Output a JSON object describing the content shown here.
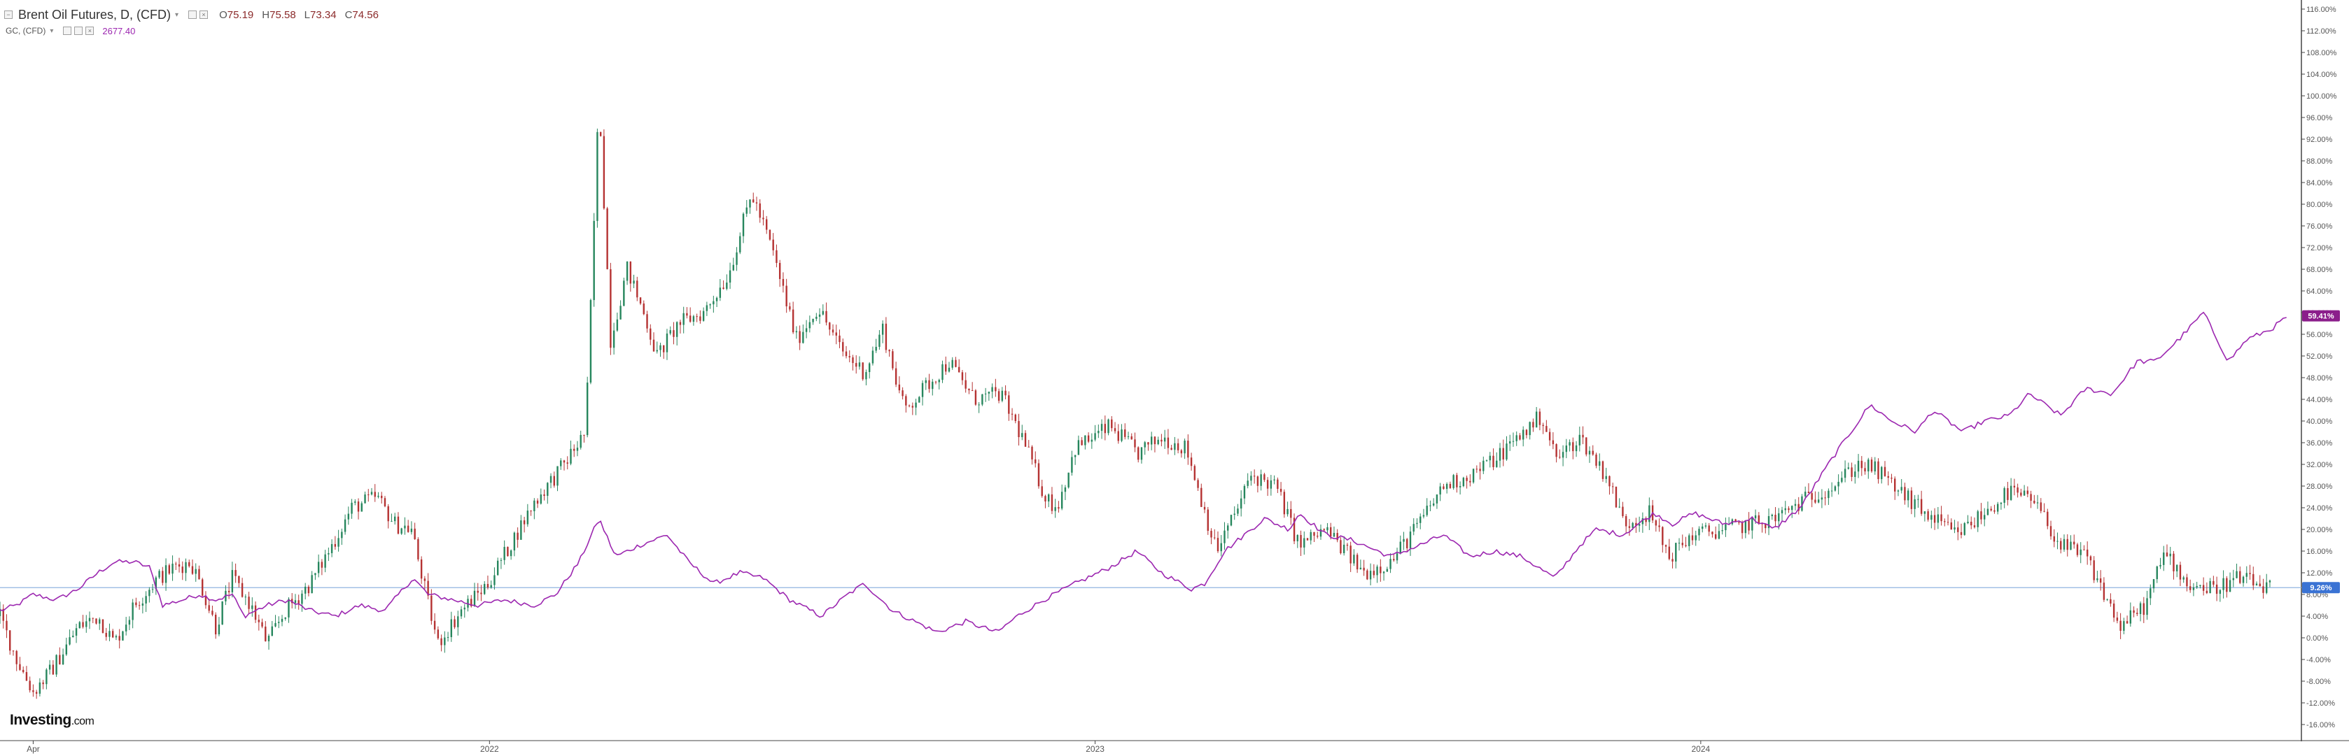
{
  "legend": {
    "main_symbol": "Brent Oil Futures, D, (CFD)",
    "open_label": "O",
    "open_value": "75.19",
    "high_label": "H",
    "high_value": "75.58",
    "low_label": "L",
    "low_value": "73.34",
    "close_label": "C",
    "close_value": "74.56",
    "secondary_symbol": "GC, (CFD)",
    "secondary_value": "2677.40"
  },
  "branding": {
    "name": "Investing",
    "suffix": ".com"
  },
  "colors": {
    "up_candle": "#26865d",
    "down_candle": "#b53232",
    "gold_line": "#9c27b0",
    "baseline": "#90b4e0",
    "axis_text": "#555555",
    "gold_badge": "#8b1e8b",
    "oil_badge": "#3a73d4"
  },
  "chart_data": {
    "type": "line",
    "axis_unit": "percent change",
    "ylim": [
      -17,
      117
    ],
    "y_ticks": [
      "116.00%",
      "112.00%",
      "108.00%",
      "104.00%",
      "100.00%",
      "96.00%",
      "92.00%",
      "88.00%",
      "84.00%",
      "80.00%",
      "76.00%",
      "72.00%",
      "68.00%",
      "64.00%",
      "60.00%",
      "56.00%",
      "52.00%",
      "48.00%",
      "44.00%",
      "40.00%",
      "36.00%",
      "32.00%",
      "28.00%",
      "24.00%",
      "20.00%",
      "16.00%",
      "12.00%",
      "8.00%",
      "4.00%",
      "0.00%",
      "-4.00%",
      "-8.00%",
      "-12.00%",
      "-16.00%"
    ],
    "y_tick_values": [
      116,
      112,
      108,
      104,
      100,
      96,
      92,
      88,
      84,
      80,
      76,
      72,
      68,
      64,
      60,
      56,
      52,
      48,
      44,
      40,
      36,
      32,
      28,
      24,
      20,
      16,
      12,
      8,
      4,
      0,
      -4,
      -8,
      -12,
      -16
    ],
    "x_tick_labels": [
      "Apr",
      "2022",
      "2023",
      "2024"
    ],
    "x_tick_dates": [
      "2021-04-01",
      "2022-01-01",
      "2023-01-01",
      "2024-01-01"
    ],
    "x_range": [
      "2021-03-12",
      "2024-12-28"
    ],
    "baseline_value": 9.26,
    "last_value_badges": [
      {
        "series": "GC, (CFD)",
        "label": "59.41%",
        "value": 59.41
      },
      {
        "series": "Brent Oil Futures, D, (CFD)",
        "label": "9.26%",
        "value": 9.26
      }
    ],
    "series": [
      {
        "name": "Brent Oil Futures, D, (CFD)",
        "style": "candlestick",
        "points": [
          [
            "2021-03-12",
            4
          ],
          [
            "2021-03-22",
            -4
          ],
          [
            "2021-04-01",
            -10
          ],
          [
            "2021-04-12",
            -6
          ],
          [
            "2021-04-28",
            2
          ],
          [
            "2021-05-10",
            4
          ],
          [
            "2021-05-20",
            -1
          ],
          [
            "2021-06-01",
            6
          ],
          [
            "2021-06-15",
            11
          ],
          [
            "2021-06-25",
            13
          ],
          [
            "2021-07-05",
            14
          ],
          [
            "2021-07-12",
            9
          ],
          [
            "2021-07-20",
            2
          ],
          [
            "2021-07-30",
            11
          ],
          [
            "2021-08-10",
            6
          ],
          [
            "2021-08-20",
            -1
          ],
          [
            "2021-08-31",
            5
          ],
          [
            "2021-09-15",
            10
          ],
          [
            "2021-09-28",
            17
          ],
          [
            "2021-10-10",
            24
          ],
          [
            "2021-10-25",
            26
          ],
          [
            "2021-11-05",
            21
          ],
          [
            "2021-11-15",
            20
          ],
          [
            "2021-11-26",
            5
          ],
          [
            "2021-12-01",
            -1
          ],
          [
            "2021-12-15",
            5
          ],
          [
            "2021-12-31",
            10
          ],
          [
            "2022-01-15",
            18
          ],
          [
            "2022-01-28",
            25
          ],
          [
            "2022-02-15",
            32
          ],
          [
            "2022-02-28",
            38
          ],
          [
            "2022-03-08",
            100
          ],
          [
            "2022-03-15",
            55
          ],
          [
            "2022-03-25",
            68
          ],
          [
            "2022-04-05",
            59
          ],
          [
            "2022-04-12",
            52
          ],
          [
            "2022-04-25",
            58
          ],
          [
            "2022-05-10",
            60
          ],
          [
            "2022-05-25",
            67
          ],
          [
            "2022-06-08",
            82
          ],
          [
            "2022-06-20",
            72
          ],
          [
            "2022-07-05",
            55
          ],
          [
            "2022-07-18",
            61
          ],
          [
            "2022-08-01",
            53
          ],
          [
            "2022-08-15",
            49
          ],
          [
            "2022-08-26",
            57
          ],
          [
            "2022-09-08",
            42
          ],
          [
            "2022-09-20",
            46
          ],
          [
            "2022-10-05",
            51
          ],
          [
            "2022-10-20",
            44
          ],
          [
            "2022-11-05",
            45
          ],
          [
            "2022-11-18",
            37
          ],
          [
            "2022-12-02",
            26
          ],
          [
            "2022-12-09",
            24
          ],
          [
            "2022-12-20",
            35
          ],
          [
            "2023-01-10",
            39
          ],
          [
            "2023-01-27",
            34
          ],
          [
            "2023-02-10",
            37
          ],
          [
            "2023-02-25",
            35
          ],
          [
            "2023-03-15",
            16
          ],
          [
            "2023-03-28",
            24
          ],
          [
            "2023-04-05",
            30
          ],
          [
            "2023-04-20",
            28
          ],
          [
            "2023-05-04",
            17
          ],
          [
            "2023-05-20",
            20
          ],
          [
            "2023-06-12",
            12
          ],
          [
            "2023-06-28",
            14
          ],
          [
            "2023-07-15",
            21
          ],
          [
            "2023-07-30",
            28
          ],
          [
            "2023-08-15",
            30
          ],
          [
            "2023-08-30",
            33
          ],
          [
            "2023-09-27",
            41
          ],
          [
            "2023-10-06",
            33
          ],
          [
            "2023-10-20",
            37
          ],
          [
            "2023-11-05",
            30
          ],
          [
            "2023-11-16",
            21
          ],
          [
            "2023-12-01",
            23
          ],
          [
            "2023-12-13",
            15
          ],
          [
            "2023-12-27",
            19
          ],
          [
            "2024-01-15",
            20
          ],
          [
            "2024-02-01",
            21
          ],
          [
            "2024-02-15",
            22
          ],
          [
            "2024-03-01",
            25
          ],
          [
            "2024-03-20",
            28
          ],
          [
            "2024-04-05",
            32
          ],
          [
            "2024-04-15",
            31
          ],
          [
            "2024-04-30",
            27
          ],
          [
            "2024-05-15",
            23
          ],
          [
            "2024-06-03",
            19
          ],
          [
            "2024-06-20",
            23
          ],
          [
            "2024-07-05",
            27
          ],
          [
            "2024-07-20",
            25
          ],
          [
            "2024-08-05",
            17
          ],
          [
            "2024-08-20",
            15
          ],
          [
            "2024-09-10",
            2
          ],
          [
            "2024-09-25",
            6
          ],
          [
            "2024-10-07",
            16
          ],
          [
            "2024-10-20",
            10
          ],
          [
            "2024-11-05",
            9
          ],
          [
            "2024-11-20",
            11
          ],
          [
            "2024-12-10",
            9
          ]
        ]
      },
      {
        "name": "GC, (CFD)",
        "style": "line",
        "points": [
          [
            "2021-03-12",
            5
          ],
          [
            "2021-03-22",
            6
          ],
          [
            "2021-04-01",
            8
          ],
          [
            "2021-04-15",
            7
          ],
          [
            "2021-04-28",
            9
          ],
          [
            "2021-05-10",
            12
          ],
          [
            "2021-05-20",
            14
          ],
          [
            "2021-06-01",
            14
          ],
          [
            "2021-06-10",
            13
          ],
          [
            "2021-06-18",
            6
          ],
          [
            "2021-06-30",
            7
          ],
          [
            "2021-07-10",
            8
          ],
          [
            "2021-07-20",
            7
          ],
          [
            "2021-07-30",
            8
          ],
          [
            "2021-08-06",
            4
          ],
          [
            "2021-08-20",
            6
          ],
          [
            "2021-09-01",
            7
          ],
          [
            "2021-09-15",
            5
          ],
          [
            "2021-09-30",
            4
          ],
          [
            "2021-10-15",
            6
          ],
          [
            "2021-10-30",
            5
          ],
          [
            "2021-11-10",
            9
          ],
          [
            "2021-11-16",
            11
          ],
          [
            "2021-11-25",
            8
          ],
          [
            "2021-12-10",
            7
          ],
          [
            "2021-12-25",
            6
          ],
          [
            "2022-01-10",
            7
          ],
          [
            "2022-01-28",
            6
          ],
          [
            "2022-02-10",
            8
          ],
          [
            "2022-02-24",
            14
          ],
          [
            "2022-03-08",
            22
          ],
          [
            "2022-03-18",
            15
          ],
          [
            "2022-04-01",
            17
          ],
          [
            "2022-04-18",
            19
          ],
          [
            "2022-05-01",
            14
          ],
          [
            "2022-05-16",
            10
          ],
          [
            "2022-06-01",
            12
          ],
          [
            "2022-06-15",
            11
          ],
          [
            "2022-07-01",
            7
          ],
          [
            "2022-07-20",
            4
          ],
          [
            "2022-08-05",
            8
          ],
          [
            "2022-08-15",
            10
          ],
          [
            "2022-09-01",
            5
          ],
          [
            "2022-09-28",
            1
          ],
          [
            "2022-10-15",
            3
          ],
          [
            "2022-11-03",
            1
          ],
          [
            "2022-11-15",
            4
          ],
          [
            "2022-12-01",
            7
          ],
          [
            "2022-12-20",
            10
          ],
          [
            "2023-01-10",
            13
          ],
          [
            "2023-01-26",
            16
          ],
          [
            "2023-02-10",
            12
          ],
          [
            "2023-02-28",
            9
          ],
          [
            "2023-03-08",
            10
          ],
          [
            "2023-03-20",
            16
          ],
          [
            "2023-04-05",
            20
          ],
          [
            "2023-04-13",
            22
          ],
          [
            "2023-04-28",
            20
          ],
          [
            "2023-05-04",
            23
          ],
          [
            "2023-05-20",
            19
          ],
          [
            "2023-06-05",
            18
          ],
          [
            "2023-06-28",
            15
          ],
          [
            "2023-07-15",
            17
          ],
          [
            "2023-07-30",
            19
          ],
          [
            "2023-08-15",
            15
          ],
          [
            "2023-08-30",
            16
          ],
          [
            "2023-09-15",
            15
          ],
          [
            "2023-10-05",
            11
          ],
          [
            "2023-10-20",
            17
          ],
          [
            "2023-10-30",
            20
          ],
          [
            "2023-11-15",
            19
          ],
          [
            "2023-12-04",
            23
          ],
          [
            "2023-12-15",
            21
          ],
          [
            "2023-12-28",
            23
          ],
          [
            "2024-01-15",
            21
          ],
          [
            "2024-02-01",
            22
          ],
          [
            "2024-02-14",
            20
          ],
          [
            "2024-03-01",
            24
          ],
          [
            "2024-03-20",
            33
          ],
          [
            "2024-04-12",
            43
          ],
          [
            "2024-04-25",
            40
          ],
          [
            "2024-05-10",
            38
          ],
          [
            "2024-05-20",
            42
          ],
          [
            "2024-06-07",
            38
          ],
          [
            "2024-06-20",
            40
          ],
          [
            "2024-07-05",
            41
          ],
          [
            "2024-07-17",
            45
          ],
          [
            "2024-08-05",
            41
          ],
          [
            "2024-08-20",
            46
          ],
          [
            "2024-09-05",
            45
          ],
          [
            "2024-09-20",
            51
          ],
          [
            "2024-10-01",
            51
          ],
          [
            "2024-10-15",
            55
          ],
          [
            "2024-10-30",
            60
          ],
          [
            "2024-11-14",
            51
          ],
          [
            "2024-11-25",
            55
          ],
          [
            "2024-12-10",
            57
          ],
          [
            "2024-12-20",
            59.41
          ]
        ]
      }
    ]
  }
}
